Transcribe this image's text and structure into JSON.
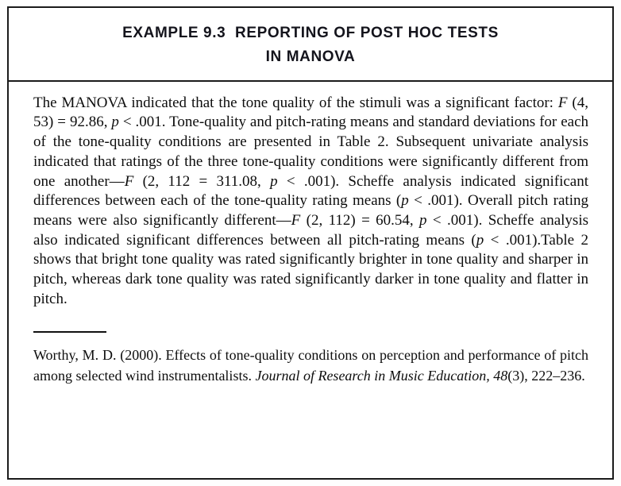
{
  "title": {
    "line1": "EXAMPLE 9.3  REPORTING OF POST HOC TESTS",
    "line2": "IN MANOVA"
  },
  "body": {
    "segments": [
      {
        "t": "The MANOVA indicated that the tone quality of the stimuli was a significant factor: "
      },
      {
        "t": "F",
        "i": true
      },
      {
        "t": " (4, 53) = 92.86, "
      },
      {
        "t": "p",
        "i": true
      },
      {
        "t": " < .001. Tone-quality and pitch-rating means and standard deviations for each of the tone-quality conditions are presented in Table 2. Subsequent univariate analysis indicated that ratings of the three tone-quality conditions were significantly different from one another—"
      },
      {
        "t": "F",
        "i": true
      },
      {
        "t": " (2, 112 = 311.08, "
      },
      {
        "t": "p",
        "i": true
      },
      {
        "t": " < .001). Scheffe analysis indicated significant differences between each of the tone-quality rating means ("
      },
      {
        "t": "p",
        "i": true
      },
      {
        "t": " < .001). Overall pitch rating means were also significantly different—"
      },
      {
        "t": "F",
        "i": true
      },
      {
        "t": " (2, 112) = 60.54, "
      },
      {
        "t": "p",
        "i": true
      },
      {
        "t": " < .001). Scheffe analysis also indicated significant differences between all pitch-rating means ("
      },
      {
        "t": "p",
        "i": true
      },
      {
        "t": " < .001).Table 2 shows that bright tone quality was rated significantly brighter in tone quality and sharper in pitch, whereas dark tone quality was rated significantly darker in tone quality and flatter in pitch."
      }
    ]
  },
  "reference": {
    "segments": [
      {
        "t": "Worthy, M. D. (2000). Effects of tone-quality conditions on perception and performance of pitch among selected wind instrumentalists. "
      },
      {
        "t": "Journal of Research in Music Education, 48",
        "i": true
      },
      {
        "t": "(3), 222–236."
      }
    ]
  }
}
